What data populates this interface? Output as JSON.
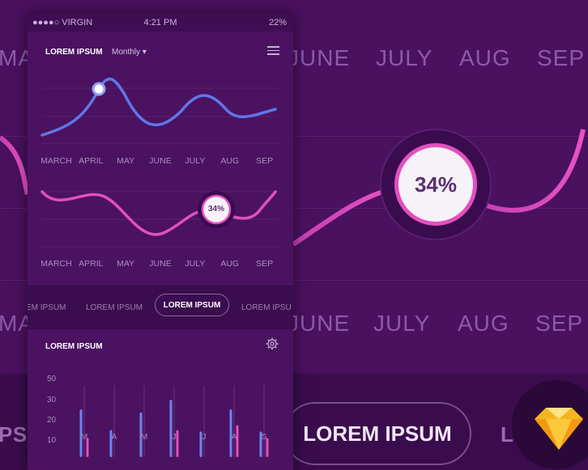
{
  "background": {
    "months_top": [
      "MA",
      "JUNE",
      "JULY",
      "AUG",
      "SEP"
    ],
    "months_mid": [
      "MA",
      "JUNE",
      "JULY",
      "AUG",
      "SEP"
    ],
    "percent_label": "34%",
    "tabs": [
      "PSUM",
      "LOREM IPSUM",
      "LO"
    ],
    "colors": {
      "accent_pink": "#e24fbf",
      "accent_blue": "#5f77e8",
      "bg": "#4a115f"
    }
  },
  "status_bar": {
    "carrier": "●●●●○ VIRGIN",
    "time": "4:21 PM",
    "battery": "22%"
  },
  "header": {
    "title": "LOREM IPSUM",
    "dropdown": "Monthly ▾",
    "menu_icon": "hamburger-icon"
  },
  "chart_top": {
    "months": [
      "MARCH",
      "APRIL",
      "MAY",
      "JUNE",
      "JULY",
      "AUG",
      "SEP"
    ]
  },
  "chart_bottom": {
    "months": [
      "MARCH",
      "APRIL",
      "MAY",
      "JUNE",
      "JULY",
      "AUG",
      "SEP"
    ],
    "percent_label": "34%"
  },
  "tabs": {
    "items": [
      "EM IPSUM",
      "LOREM IPSUM",
      "LOREM IPSUM",
      "LOREM IPSU"
    ],
    "active_index": 2
  },
  "bar_chart_section": {
    "title": "LOREM IPSUM",
    "settings_icon": "gear-icon"
  },
  "chart_data": {
    "type": "bar",
    "title": "LOREM IPSUM",
    "categories": [
      "M",
      "A",
      "M",
      "J",
      "J",
      "A",
      "S"
    ],
    "y_ticks": [
      50,
      30,
      20,
      10
    ],
    "series": [
      {
        "color": "#6d84f0",
        "values": [
          30,
          17,
          28,
          36,
          16,
          30,
          16
        ]
      },
      {
        "color": "#e24fbf",
        "values": [
          12,
          0,
          0,
          17,
          0,
          20,
          12
        ]
      }
    ],
    "ylim": [
      0,
      60
    ]
  }
}
